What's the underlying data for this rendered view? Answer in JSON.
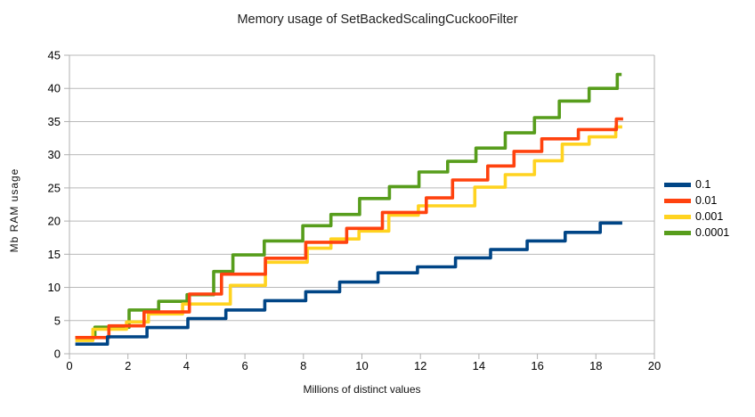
{
  "title": "Memory usage of SetBackedScalingCuckooFilter",
  "y_axis": {
    "label": "Mb RAM usage",
    "min": 0,
    "max": 45,
    "ticks": [
      0,
      5,
      10,
      15,
      20,
      25,
      30,
      35,
      40,
      45
    ]
  },
  "x_axis": {
    "label": "Millions of distinct values",
    "min": 0,
    "max": 20,
    "ticks": [
      0,
      2,
      4,
      6,
      8,
      10,
      12,
      14,
      16,
      18,
      20
    ]
  },
  "legend": [
    {
      "label": "0.1",
      "color": "#004586"
    },
    {
      "label": "0.01",
      "color": "#FF420E"
    },
    {
      "label": "0.001",
      "color": "#FFD320"
    },
    {
      "label": "0.0001",
      "color": "#579D1C"
    }
  ],
  "colors": {
    "grid": "#b9b9b9",
    "axis": "#b0b0b0",
    "background": "#ffffff"
  },
  "chart_data": {
    "type": "line",
    "subtype": "step-after",
    "title": "Memory usage of SetBackedScalingCuckooFilter",
    "xlabel": "Millions of distinct values",
    "ylabel": "Mb RAM usage",
    "xlim": [
      0,
      20
    ],
    "ylim": [
      0,
      45
    ],
    "grid": "horizontal",
    "legend_position": "right",
    "series": [
      {
        "name": "0.0001",
        "color": "#579D1C",
        "end_x": 18.88,
        "step_points": [
          [
            0.2,
            2.45
          ],
          [
            0.87,
            4.0
          ],
          [
            2.04,
            6.6
          ],
          [
            3.05,
            7.9
          ],
          [
            4.02,
            8.9
          ],
          [
            4.93,
            12.4
          ],
          [
            5.59,
            14.9
          ],
          [
            6.66,
            17.0
          ],
          [
            7.98,
            19.3
          ],
          [
            8.94,
            21.0
          ],
          [
            9.92,
            23.4
          ],
          [
            10.94,
            25.2
          ],
          [
            11.95,
            27.4
          ],
          [
            12.93,
            29.0
          ],
          [
            13.9,
            31.0
          ],
          [
            14.9,
            33.3
          ],
          [
            15.9,
            35.6
          ],
          [
            16.75,
            38.1
          ],
          [
            17.77,
            40.0
          ],
          [
            18.73,
            42.1
          ]
        ]
      },
      {
        "name": "0.001",
        "color": "#FFD320",
        "end_x": 18.9,
        "step_points": [
          [
            0.2,
            2.0
          ],
          [
            0.8,
            3.7
          ],
          [
            1.95,
            4.8
          ],
          [
            2.7,
            6.0
          ],
          [
            3.87,
            7.5
          ],
          [
            5.5,
            10.3
          ],
          [
            6.7,
            13.8
          ],
          [
            8.13,
            15.9
          ],
          [
            8.94,
            17.3
          ],
          [
            9.9,
            18.5
          ],
          [
            10.92,
            20.9
          ],
          [
            11.93,
            22.3
          ],
          [
            13.86,
            25.1
          ],
          [
            14.9,
            27.0
          ],
          [
            15.9,
            29.1
          ],
          [
            16.85,
            31.6
          ],
          [
            17.77,
            32.7
          ],
          [
            18.68,
            34.2
          ]
        ]
      },
      {
        "name": "0.01",
        "color": "#FF420E",
        "end_x": 18.93,
        "step_points": [
          [
            0.2,
            2.45
          ],
          [
            1.35,
            4.2
          ],
          [
            2.55,
            6.3
          ],
          [
            4.1,
            9.0
          ],
          [
            5.2,
            12.0
          ],
          [
            6.7,
            14.4
          ],
          [
            8.08,
            16.8
          ],
          [
            9.48,
            18.9
          ],
          [
            10.7,
            21.3
          ],
          [
            12.2,
            23.5
          ],
          [
            13.1,
            26.2
          ],
          [
            14.3,
            28.3
          ],
          [
            15.2,
            30.5
          ],
          [
            16.15,
            32.4
          ],
          [
            17.4,
            33.8
          ],
          [
            18.7,
            35.4
          ]
        ]
      },
      {
        "name": "0.1",
        "color": "#004586",
        "end_x": 18.9,
        "step_points": [
          [
            0.2,
            1.45
          ],
          [
            1.3,
            2.55
          ],
          [
            2.65,
            3.95
          ],
          [
            4.05,
            5.3
          ],
          [
            5.35,
            6.6
          ],
          [
            6.68,
            8.0
          ],
          [
            8.08,
            9.35
          ],
          [
            9.24,
            10.8
          ],
          [
            10.55,
            12.2
          ],
          [
            11.9,
            13.1
          ],
          [
            13.2,
            14.45
          ],
          [
            14.4,
            15.7
          ],
          [
            15.65,
            17.0
          ],
          [
            16.95,
            18.3
          ],
          [
            18.15,
            19.7
          ]
        ]
      }
    ]
  }
}
